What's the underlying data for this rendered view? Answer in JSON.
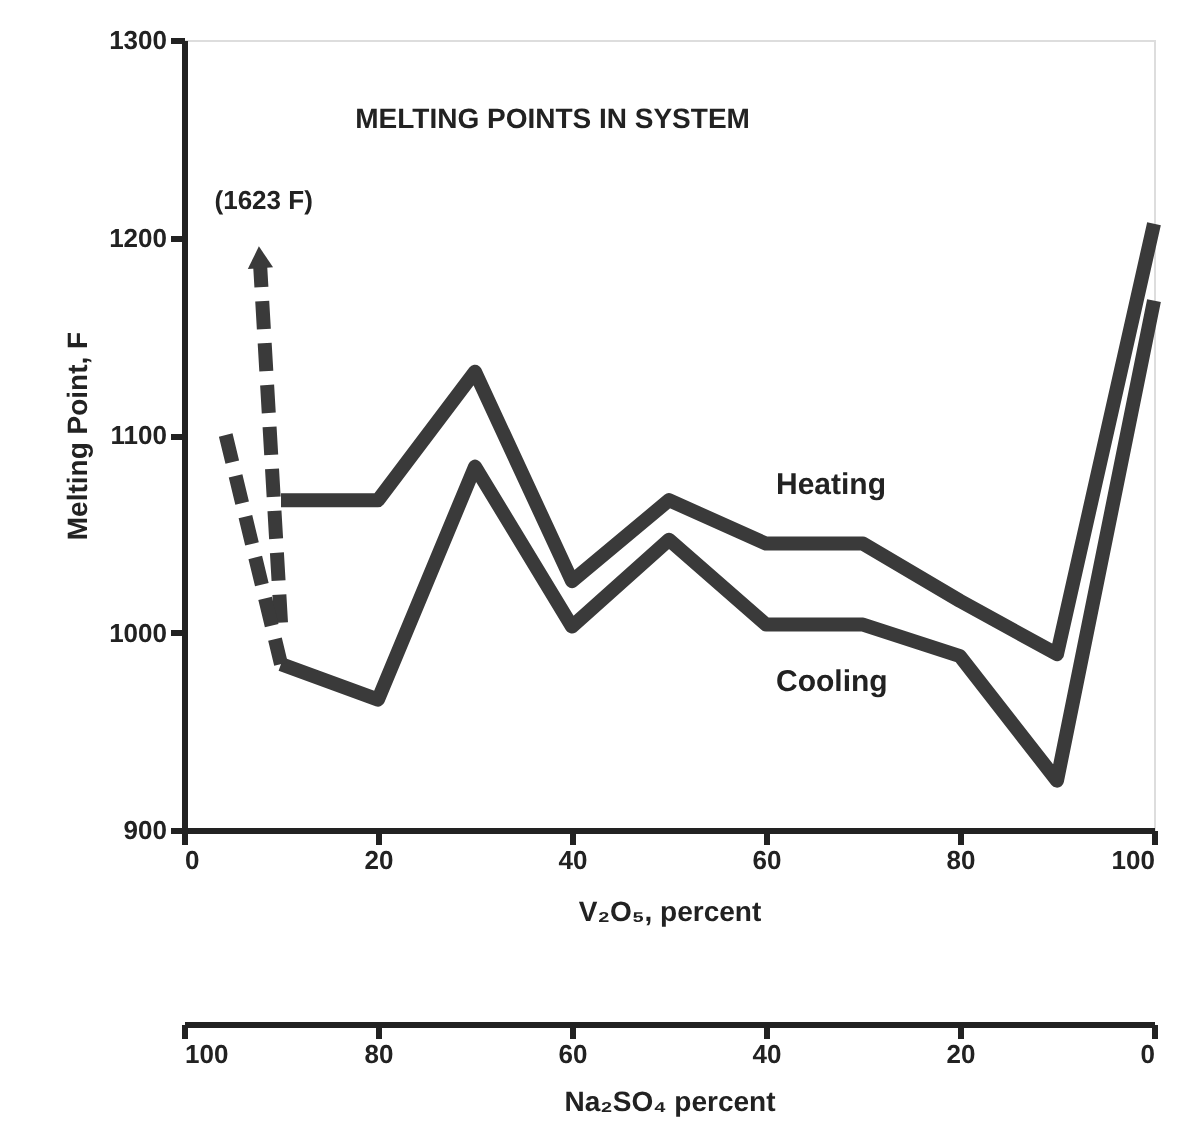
{
  "chart_data": {
    "type": "line",
    "title": "MELTING POINTS IN SYSTEM",
    "xlabel": "V₂O₅, percent",
    "ylabel": "Melting Point, F",
    "x2label": "Na₂SO₄ percent",
    "xlim": [
      0,
      100
    ],
    "xticks": [
      0,
      20,
      40,
      60,
      80,
      100
    ],
    "ylim": [
      900,
      1300
    ],
    "yticks": [
      900,
      1000,
      1100,
      1200,
      1300
    ],
    "x2lim": [
      100,
      0
    ],
    "x2ticks": [
      100,
      80,
      60,
      40,
      20,
      0
    ],
    "grid": false,
    "series": [
      {
        "name": "Heating",
        "color": "#3a3a3a",
        "line_style": "solid",
        "x": [
          10,
          20,
          30,
          40,
          50,
          60,
          70,
          80,
          90,
          100
        ],
        "values": [
          1067,
          1067,
          1132,
          1026,
          1067,
          1045,
          1045,
          1016,
          989,
          1207
        ]
      },
      {
        "name": "Cooling",
        "color": "#3a3a3a",
        "line_style": "solid",
        "x": [
          10,
          20,
          30,
          40,
          50,
          60,
          70,
          80,
          90,
          100
        ],
        "values": [
          984,
          966,
          1084,
          1003,
          1047,
          1004,
          1004,
          988,
          925,
          1168
        ]
      },
      {
        "color": "#3a3a3a",
        "line_style": "dashed",
        "x": [
          10,
          7.8
        ],
        "values": [
          1005,
          1190
        ]
      },
      {
        "color": "#3a3a3a",
        "line_style": "dashed",
        "x": [
          4.3,
          10
        ],
        "values": [
          1100,
          984
        ]
      }
    ],
    "annotations": [
      {
        "text": "(1623 F)",
        "x": 7.8,
        "y": 1190
      }
    ]
  }
}
